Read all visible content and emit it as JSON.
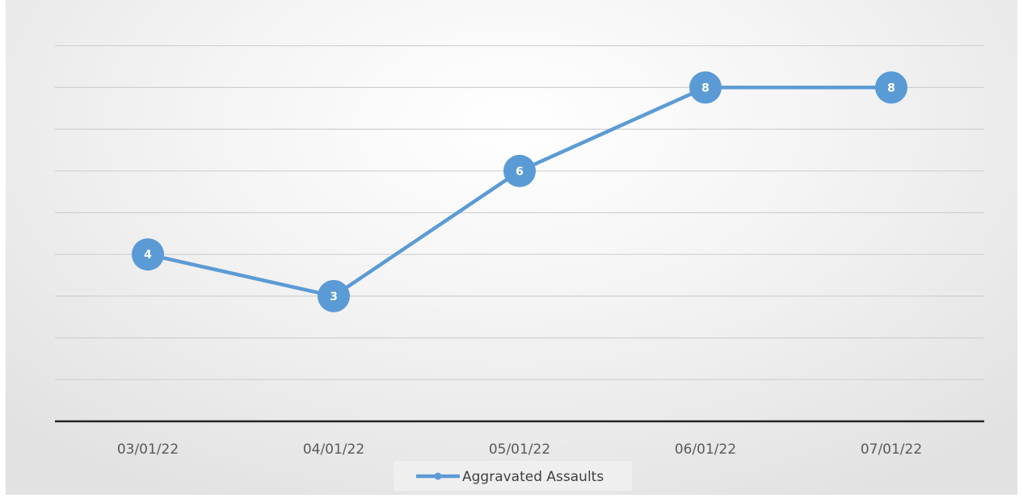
{
  "chart_data": {
    "type": "line",
    "categories": [
      "03/01/22",
      "04/01/22",
      "05/01/22",
      "06/01/22",
      "07/01/22"
    ],
    "series": [
      {
        "name": "Aggravated Assaults",
        "values": [
          4,
          3,
          6,
          8,
          8
        ],
        "color": "#5b9bd5"
      }
    ],
    "ylim": [
      0,
      9
    ],
    "ytick_step": 1,
    "grid": true,
    "legend_position": "bottom",
    "data_labels": true
  }
}
